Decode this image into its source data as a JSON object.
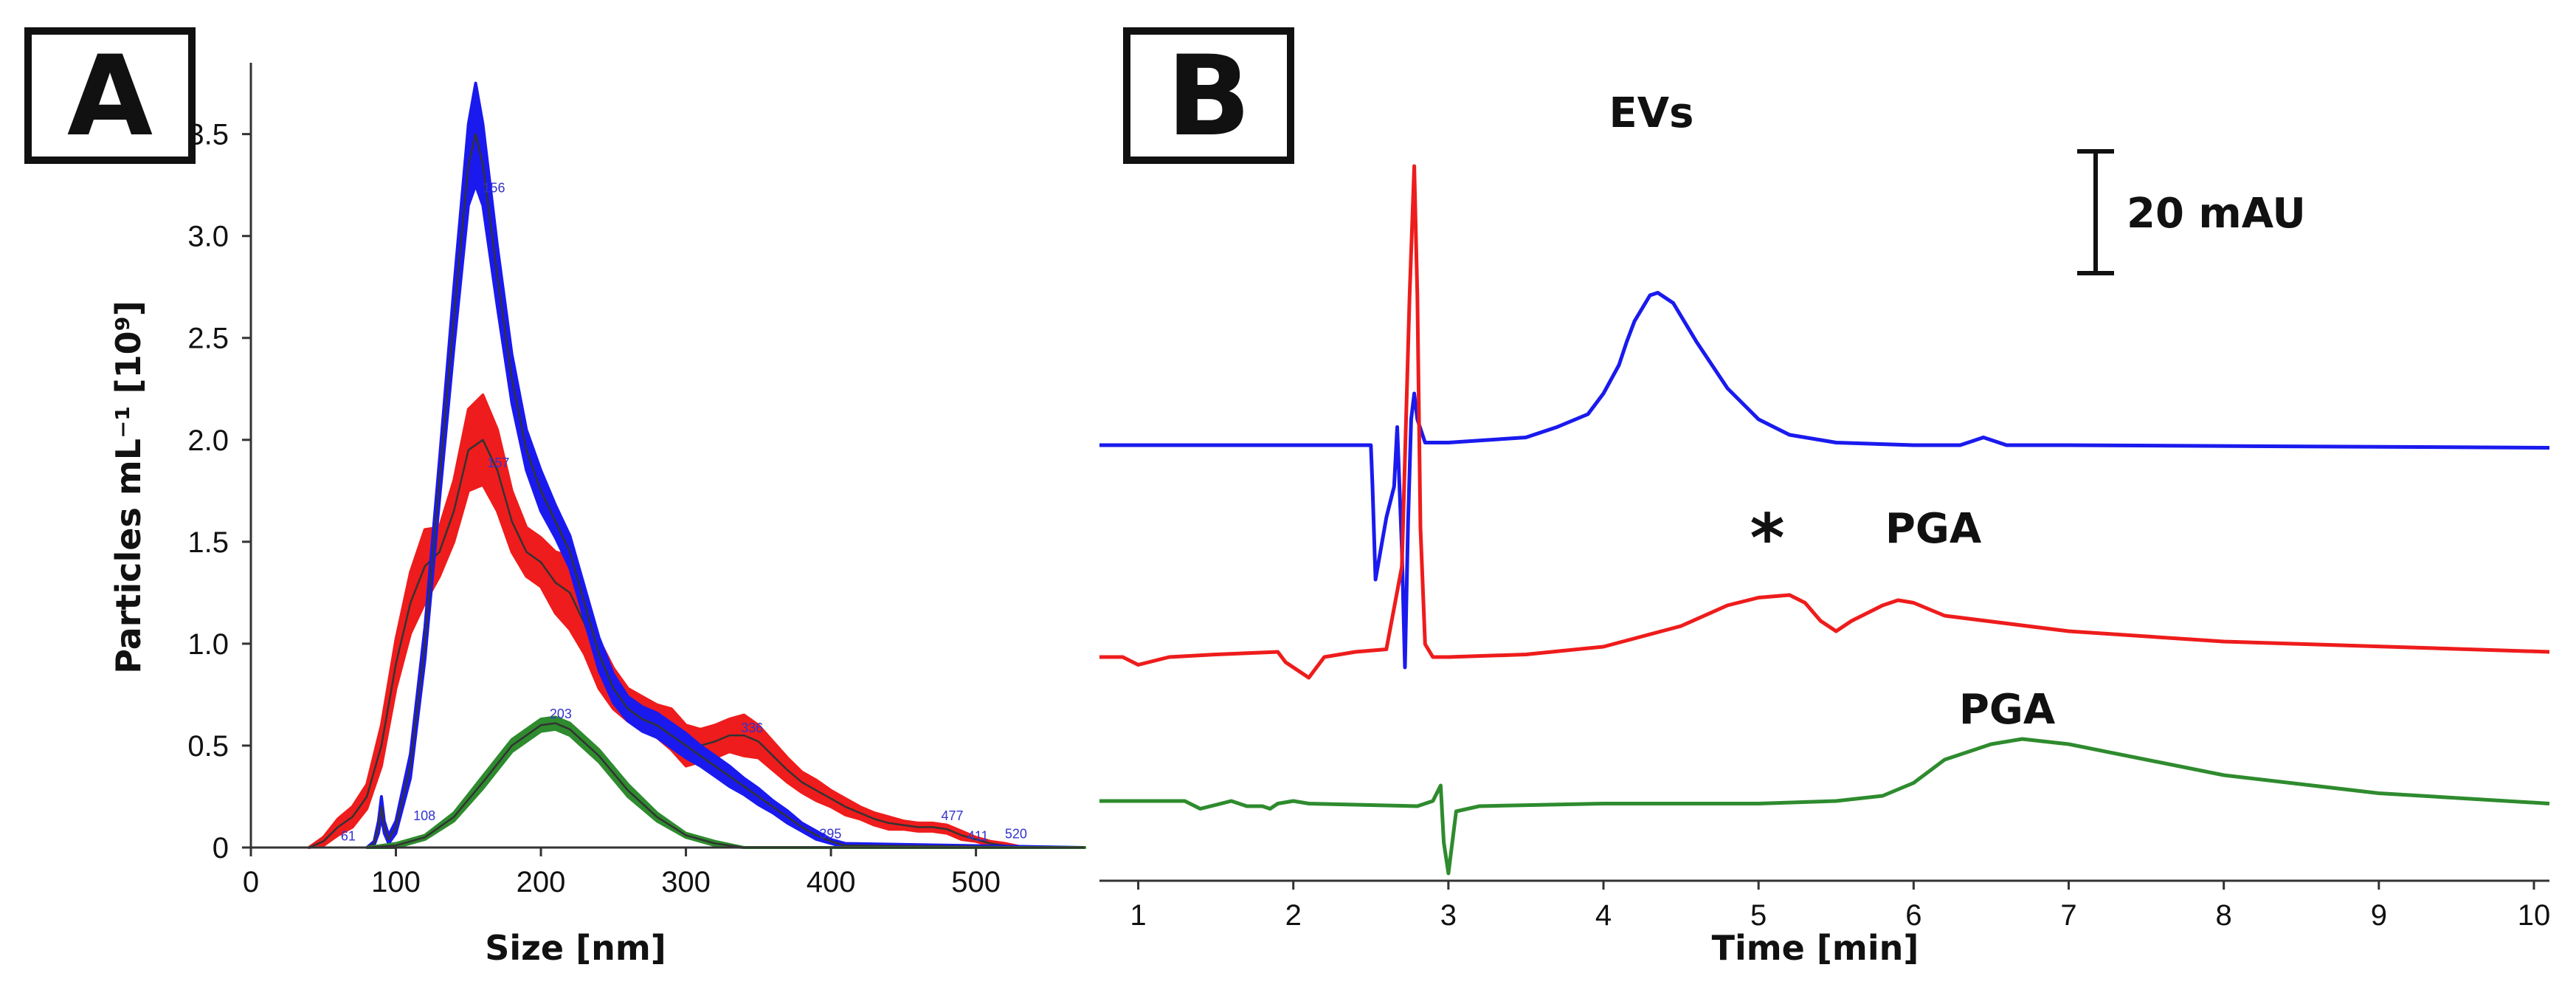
{
  "chart_data": [
    {
      "panel": "A",
      "type": "area",
      "xlabel": "Size [nm]",
      "ylabel": "Particles mL⁻¹ [10⁹]",
      "xlim": [
        0,
        575
      ],
      "ylim": [
        0,
        3.85
      ],
      "xticks": [
        0,
        100,
        200,
        300,
        400,
        500
      ],
      "yticks": [
        0,
        0.5,
        1.0,
        1.5,
        2.0,
        2.5,
        3.0,
        3.5
      ],
      "ytick_labels": [
        "0",
        "0.5",
        "1.0",
        "1.5",
        "2.0",
        "2.5",
        "3.0",
        "3.5"
      ],
      "series": [
        {
          "name": "red",
          "color": "#ee1c1c",
          "x": [
            40,
            50,
            60,
            70,
            80,
            90,
            100,
            110,
            120,
            130,
            140,
            150,
            160,
            170,
            180,
            190,
            200,
            210,
            220,
            230,
            240,
            250,
            260,
            270,
            280,
            290,
            300,
            310,
            320,
            330,
            340,
            350,
            360,
            370,
            380,
            390,
            400,
            410,
            420,
            430,
            440,
            450,
            460,
            470,
            480,
            490,
            500,
            510,
            520,
            530,
            540,
            575
          ],
          "y": [
            0,
            0.03,
            0.1,
            0.15,
            0.25,
            0.5,
            0.9,
            1.2,
            1.38,
            1.45,
            1.65,
            1.95,
            2.0,
            1.85,
            1.6,
            1.45,
            1.4,
            1.3,
            1.25,
            1.1,
            0.9,
            0.78,
            0.7,
            0.66,
            0.62,
            0.58,
            0.5,
            0.5,
            0.52,
            0.55,
            0.55,
            0.52,
            0.45,
            0.38,
            0.32,
            0.28,
            0.24,
            0.2,
            0.17,
            0.14,
            0.12,
            0.11,
            0.1,
            0.1,
            0.09,
            0.06,
            0.04,
            0.02,
            0.01,
            0.005,
            0,
            0
          ],
          "spread": [
            0,
            0.02,
            0.04,
            0.05,
            0.06,
            0.1,
            0.12,
            0.15,
            0.18,
            0.12,
            0.15,
            0.2,
            0.22,
            0.2,
            0.15,
            0.12,
            0.12,
            0.15,
            0.18,
            0.15,
            0.12,
            0.1,
            0.08,
            0.08,
            0.08,
            0.1,
            0.1,
            0.08,
            0.08,
            0.08,
            0.1,
            0.08,
            0.07,
            0.06,
            0.05,
            0.05,
            0.04,
            0.04,
            0.03,
            0.03,
            0.03,
            0.02,
            0.02,
            0.02,
            0.02,
            0.02,
            0.01,
            0.01,
            0.01,
            0,
            0,
            0
          ]
        },
        {
          "name": "blue",
          "color": "#1a1aee",
          "x": [
            80,
            85,
            88,
            90,
            92,
            95,
            100,
            110,
            120,
            130,
            140,
            150,
            155,
            160,
            170,
            180,
            190,
            200,
            210,
            220,
            230,
            240,
            250,
            260,
            270,
            280,
            290,
            300,
            310,
            320,
            330,
            340,
            350,
            360,
            370,
            380,
            390,
            400,
            410,
            575
          ],
          "y": [
            0,
            0.02,
            0.1,
            0.2,
            0.1,
            0.04,
            0.1,
            0.4,
            1.0,
            1.8,
            2.6,
            3.35,
            3.5,
            3.35,
            2.8,
            2.3,
            1.95,
            1.75,
            1.6,
            1.45,
            1.2,
            0.95,
            0.78,
            0.68,
            0.63,
            0.6,
            0.55,
            0.5,
            0.45,
            0.4,
            0.35,
            0.3,
            0.25,
            0.2,
            0.15,
            0.1,
            0.06,
            0.03,
            0.01,
            0
          ],
          "spread": [
            0,
            0.01,
            0.03,
            0.05,
            0.03,
            0.02,
            0.03,
            0.06,
            0.08,
            0.1,
            0.15,
            0.2,
            0.25,
            0.2,
            0.15,
            0.12,
            0.1,
            0.1,
            0.08,
            0.08,
            0.08,
            0.08,
            0.07,
            0.06,
            0.06,
            0.06,
            0.06,
            0.06,
            0.05,
            0.05,
            0.05,
            0.04,
            0.04,
            0.03,
            0.03,
            0.02,
            0.02,
            0.01,
            0.01,
            0
          ]
        },
        {
          "name": "green",
          "color": "#2e8b2e",
          "x": [
            80,
            100,
            120,
            140,
            160,
            180,
            200,
            210,
            220,
            240,
            260,
            280,
            300,
            320,
            340,
            575
          ],
          "y": [
            0,
            0.01,
            0.05,
            0.15,
            0.32,
            0.5,
            0.6,
            0.61,
            0.58,
            0.45,
            0.28,
            0.15,
            0.06,
            0.02,
            0,
            0
          ],
          "spread": [
            0,
            0.01,
            0.01,
            0.02,
            0.03,
            0.03,
            0.03,
            0.03,
            0.03,
            0.03,
            0.03,
            0.02,
            0.01,
            0.01,
            0,
            0
          ]
        }
      ],
      "annotations": [
        {
          "text": "61",
          "x": 62,
          "y": 0.02
        },
        {
          "text": "108",
          "x": 112,
          "y": 0.12
        },
        {
          "text": "156",
          "x": 160,
          "y": 3.2
        },
        {
          "text": "157",
          "x": 163,
          "y": 1.85
        },
        {
          "text": "203",
          "x": 206,
          "y": 0.62
        },
        {
          "text": "336",
          "x": 338,
          "y": 0.55
        },
        {
          "text": "395",
          "x": 392,
          "y": 0.03
        },
        {
          "text": "477",
          "x": 476,
          "y": 0.12
        },
        {
          "text": "411",
          "x": 494,
          "y": 0.02
        },
        {
          "text": "520",
          "x": 520,
          "y": 0.03
        }
      ]
    },
    {
      "panel": "B",
      "type": "line",
      "xlabel": "Time [min]",
      "ylabel": "",
      "xlim": [
        0.75,
        10.1
      ],
      "xticks": [
        1,
        2,
        3,
        4,
        5,
        6,
        7,
        8,
        9,
        10
      ],
      "scale_bar": "20 mAU",
      "series": [
        {
          "name": "blue",
          "color": "#1a1aee",
          "baseline": 100,
          "peak_label": "EVs",
          "x": [
            0.75,
            2.5,
            2.51,
            2.53,
            2.6,
            2.65,
            2.67,
            2.7,
            2.72,
            2.74,
            2.76,
            2.78,
            2.8,
            2.85,
            3.0,
            3.5,
            3.7,
            3.9,
            4.0,
            4.1,
            4.15,
            4.2,
            4.3,
            4.35,
            4.45,
            4.6,
            4.8,
            5.0,
            5.2,
            5.5,
            6.0,
            6.3,
            6.45,
            6.6,
            7.0,
            10.1
          ],
          "y": [
            100,
            100,
            85,
            48,
            72,
            84,
            107,
            60,
            14,
            70,
            110,
            120,
            110,
            101,
            101,
            103,
            107,
            112,
            120,
            131,
            140,
            148,
            158,
            159,
            155,
            140,
            122,
            110,
            104,
            101,
            100,
            100,
            103,
            100,
            100,
            99
          ]
        },
        {
          "name": "red",
          "color": "#ee1c1c",
          "baseline": 60,
          "peak_label": "PGA",
          "marker": "*",
          "x": [
            0.75,
            0.9,
            1.0,
            1.2,
            1.5,
            1.9,
            1.95,
            2.1,
            2.15,
            2.2,
            2.4,
            2.6,
            2.7,
            2.75,
            2.78,
            2.8,
            2.82,
            2.85,
            2.9,
            3.0,
            3.5,
            4.0,
            4.5,
            4.8,
            5.0,
            5.2,
            5.3,
            5.4,
            5.5,
            5.6,
            5.8,
            5.9,
            6.0,
            6.2,
            7.0,
            8.0,
            10.1
          ],
          "y": [
            60,
            60,
            57,
            60,
            61,
            62,
            58,
            52,
            56,
            60,
            62,
            63,
            95,
            200,
            250,
            200,
            110,
            65,
            60,
            60,
            61,
            64,
            72,
            80,
            83,
            84,
            81,
            74,
            70,
            74,
            80,
            82,
            81,
            76,
            70,
            66,
            62
          ]
        },
        {
          "name": "green",
          "color": "#2e8b2e",
          "baseline": 28,
          "peak_label": "PGA",
          "x": [
            0.75,
            1.3,
            1.4,
            1.6,
            1.7,
            1.8,
            1.85,
            1.9,
            2.0,
            2.1,
            2.8,
            2.9,
            2.95,
            2.97,
            3.0,
            3.05,
            3.2,
            4.0,
            5.0,
            5.5,
            5.8,
            6.0,
            6.2,
            6.5,
            6.7,
            7.0,
            7.5,
            8.0,
            9.0,
            10.1
          ],
          "y": [
            28,
            28,
            25,
            28,
            26,
            26,
            25,
            27,
            28,
            27,
            26,
            28,
            34,
            12,
            0,
            24,
            26,
            27,
            27,
            28,
            30,
            35,
            44,
            50,
            52,
            50,
            44,
            38,
            31,
            27
          ]
        }
      ]
    }
  ],
  "labels": {
    "panel_a": "A",
    "panel_b": "B",
    "evs": "EVs",
    "pga_red": "PGA",
    "pga_green": "PGA",
    "star": "*",
    "scale_bar": "20 mAU",
    "a_xlabel": "Size [nm]",
    "a_ylabel": "Particles mL⁻¹ [10⁹]",
    "b_xlabel": "Time [min]"
  }
}
